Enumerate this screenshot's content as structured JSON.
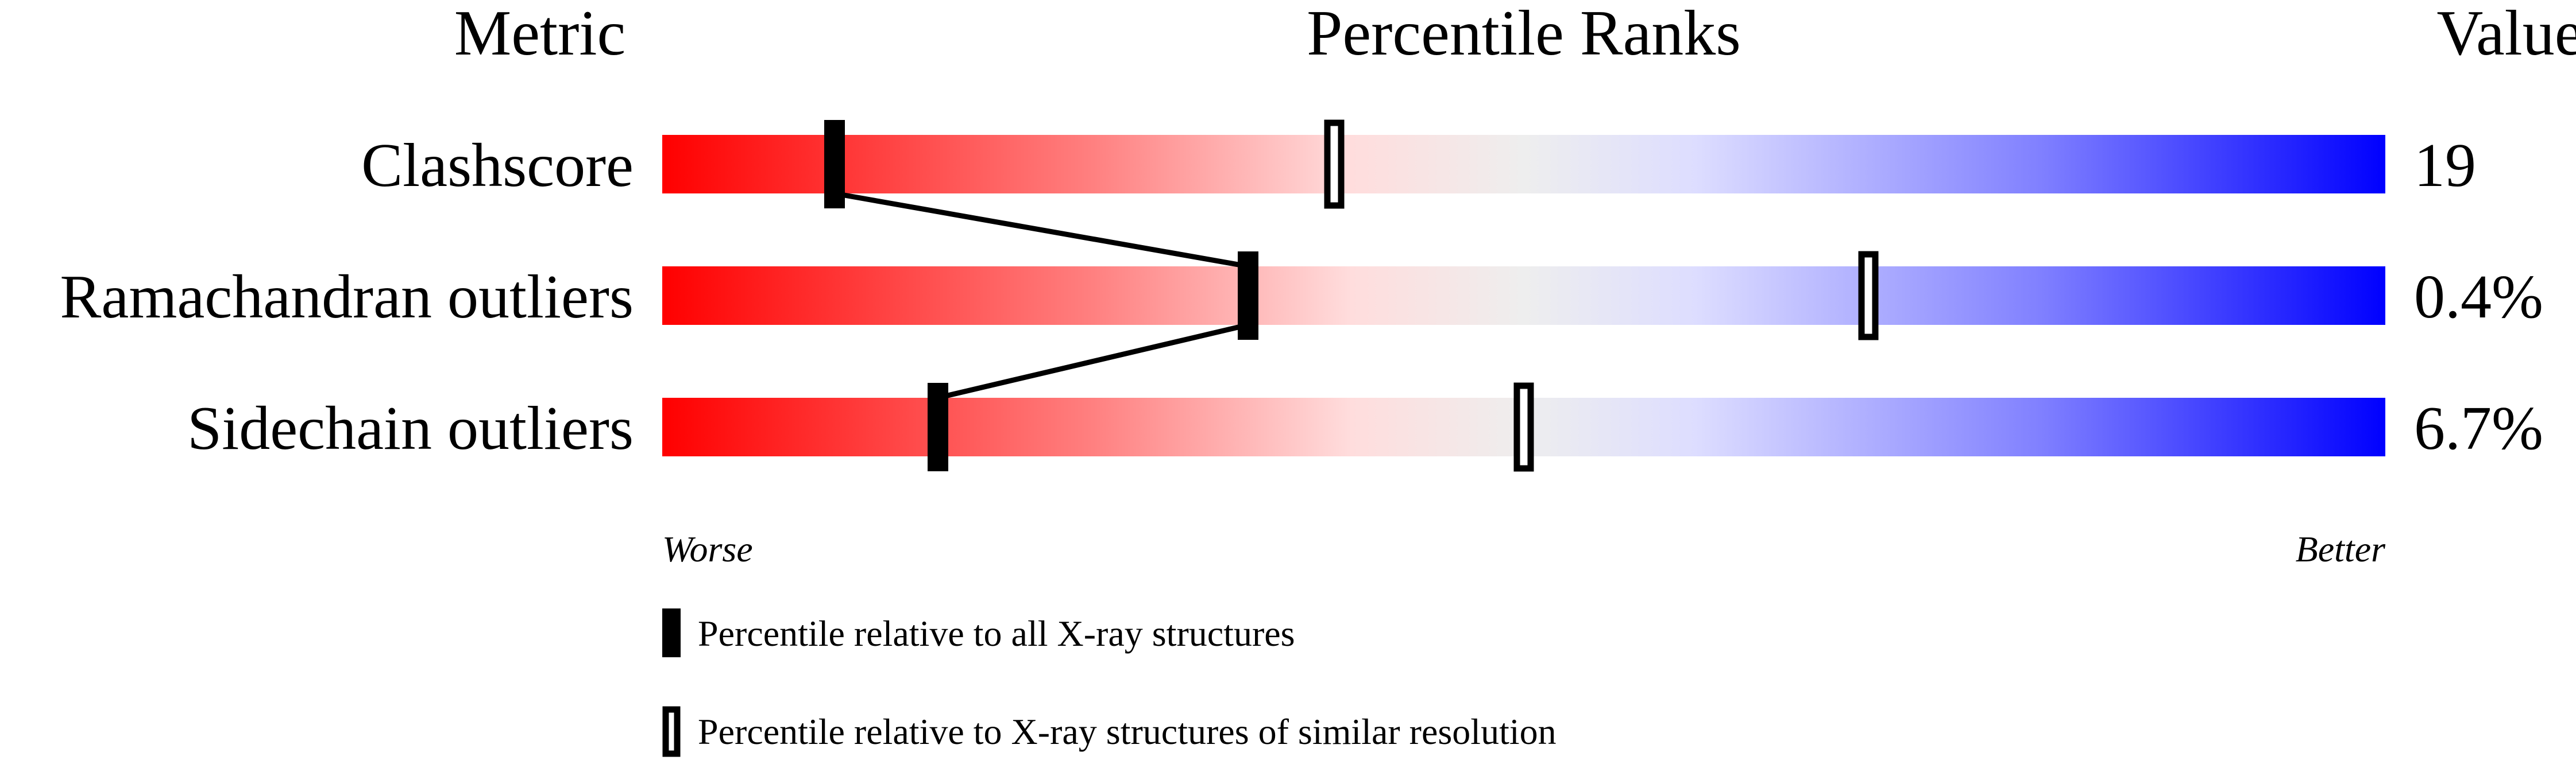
{
  "chart_data": {
    "type": "percentile-ranks",
    "headers": {
      "metric": "Metric",
      "ranks": "Percentile Ranks",
      "value": "Value"
    },
    "xlim": [
      0,
      100
    ],
    "metrics": [
      {
        "name": "Clashscore",
        "value": "19",
        "percentile_all": 10,
        "percentile_similar": 39
      },
      {
        "name": "Ramachandran outliers",
        "value": "0.4%",
        "percentile_all": 34,
        "percentile_similar": 70
      },
      {
        "name": "Sidechain outliers",
        "value": "6.7%",
        "percentile_all": 16,
        "percentile_similar": 50
      }
    ],
    "axis_labels": {
      "left": "Worse",
      "right": "Better"
    },
    "legend": [
      {
        "marker": "filled",
        "label": "Percentile relative to all X-ray structures"
      },
      {
        "marker": "hollow",
        "label": "Percentile relative to X-ray structures of similar resolution"
      }
    ],
    "gradient_colors": [
      "#ff0000",
      "#ff8080",
      "#ffdddd",
      "#eeeeee",
      "#ddddff",
      "#8080ff",
      "#0000ff"
    ]
  }
}
